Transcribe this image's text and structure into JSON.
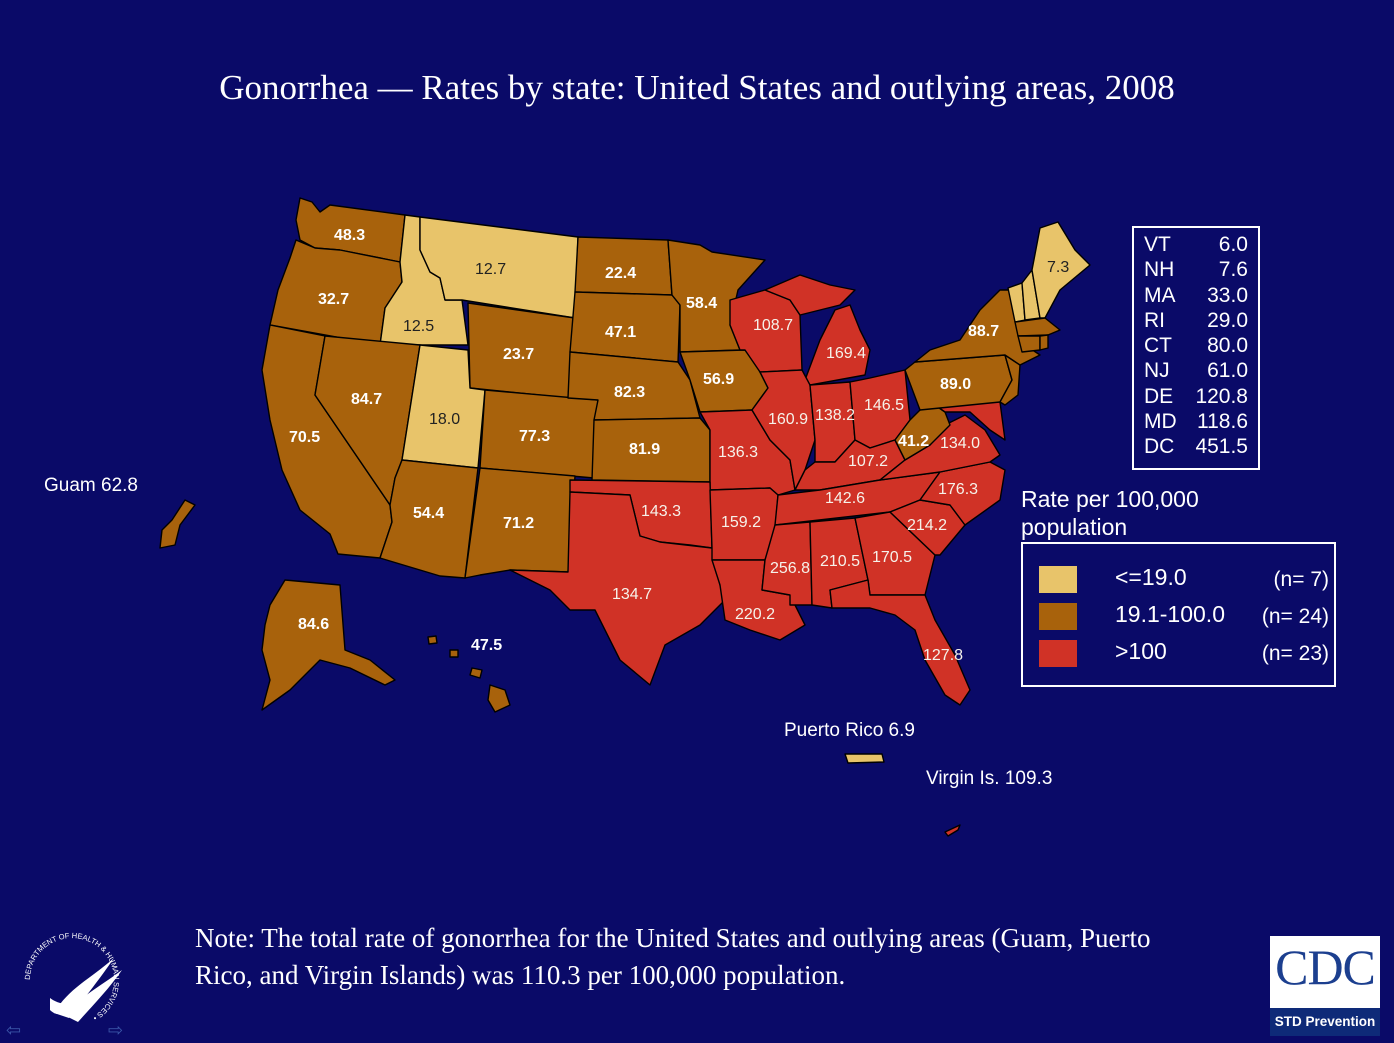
{
  "title": "Gonorrhea — Rates by state: United States and outlying areas, 2008",
  "colors": {
    "background": "#0a0a68",
    "low": "#e8c46a",
    "mid": "#a8620c",
    "high": "#d03226"
  },
  "state_labels": [
    "48.3",
    "32.7",
    "12.7",
    "12.5",
    "22.4",
    "58.4",
    "47.1",
    "23.7",
    "18.0",
    "84.7",
    "70.5",
    "82.3",
    "56.9",
    "77.3",
    "81.9",
    "54.4",
    "71.2",
    "134.7",
    "143.3",
    "108.7",
    "169.4",
    "88.7",
    "89.0",
    "160.9",
    "138.2",
    "146.5",
    "41.2",
    "134.0",
    "136.3",
    "107.2",
    "159.2",
    "142.6",
    "176.3",
    "214.2",
    "256.8",
    "210.5",
    "170.5",
    "220.2",
    "127.8",
    "7.3",
    "84.6",
    "47.5"
  ],
  "outlying": {
    "guam": "Guam 62.8",
    "puerto_rico": "Puerto Rico 6.9",
    "virgin_islands": "Virgin Is. 109.3"
  },
  "small_states": [
    {
      "abbr": "VT",
      "value": "6.0"
    },
    {
      "abbr": "NH",
      "value": "7.6"
    },
    {
      "abbr": "MA",
      "value": "33.0"
    },
    {
      "abbr": "RI",
      "value": "29.0"
    },
    {
      "abbr": "CT",
      "value": "80.0"
    },
    {
      "abbr": "NJ",
      "value": "61.0"
    },
    {
      "abbr": "DE",
      "value": "120.8"
    },
    {
      "abbr": "MD",
      "value": "118.6"
    },
    {
      "abbr": "DC",
      "value": "451.5"
    }
  ],
  "legend": {
    "title": "Rate per 100,000 population",
    "items": [
      {
        "label": "<=19.0",
        "count": "(n=  7)",
        "color": "#e8c46a"
      },
      {
        "label": "19.1-100.0",
        "count": "(n= 24)",
        "color": "#a8620c"
      },
      {
        "label": ">100",
        "count": "(n= 23)",
        "color": "#d03226"
      }
    ]
  },
  "note": "Note: The total rate of gonorrhea for the United States and outlying areas (Guam, Puerto Rico, and Virgin Islands) was 110.3 per 100,000 population.",
  "logos": {
    "cdc_text": "CDC",
    "cdc_subtitle": "STD Prevention",
    "hhs_text": "DEPARTMENT OF HEALTH & HUMAN SERVICES • USA"
  },
  "nav": {
    "prev": "⇦",
    "next": "⇨"
  }
}
